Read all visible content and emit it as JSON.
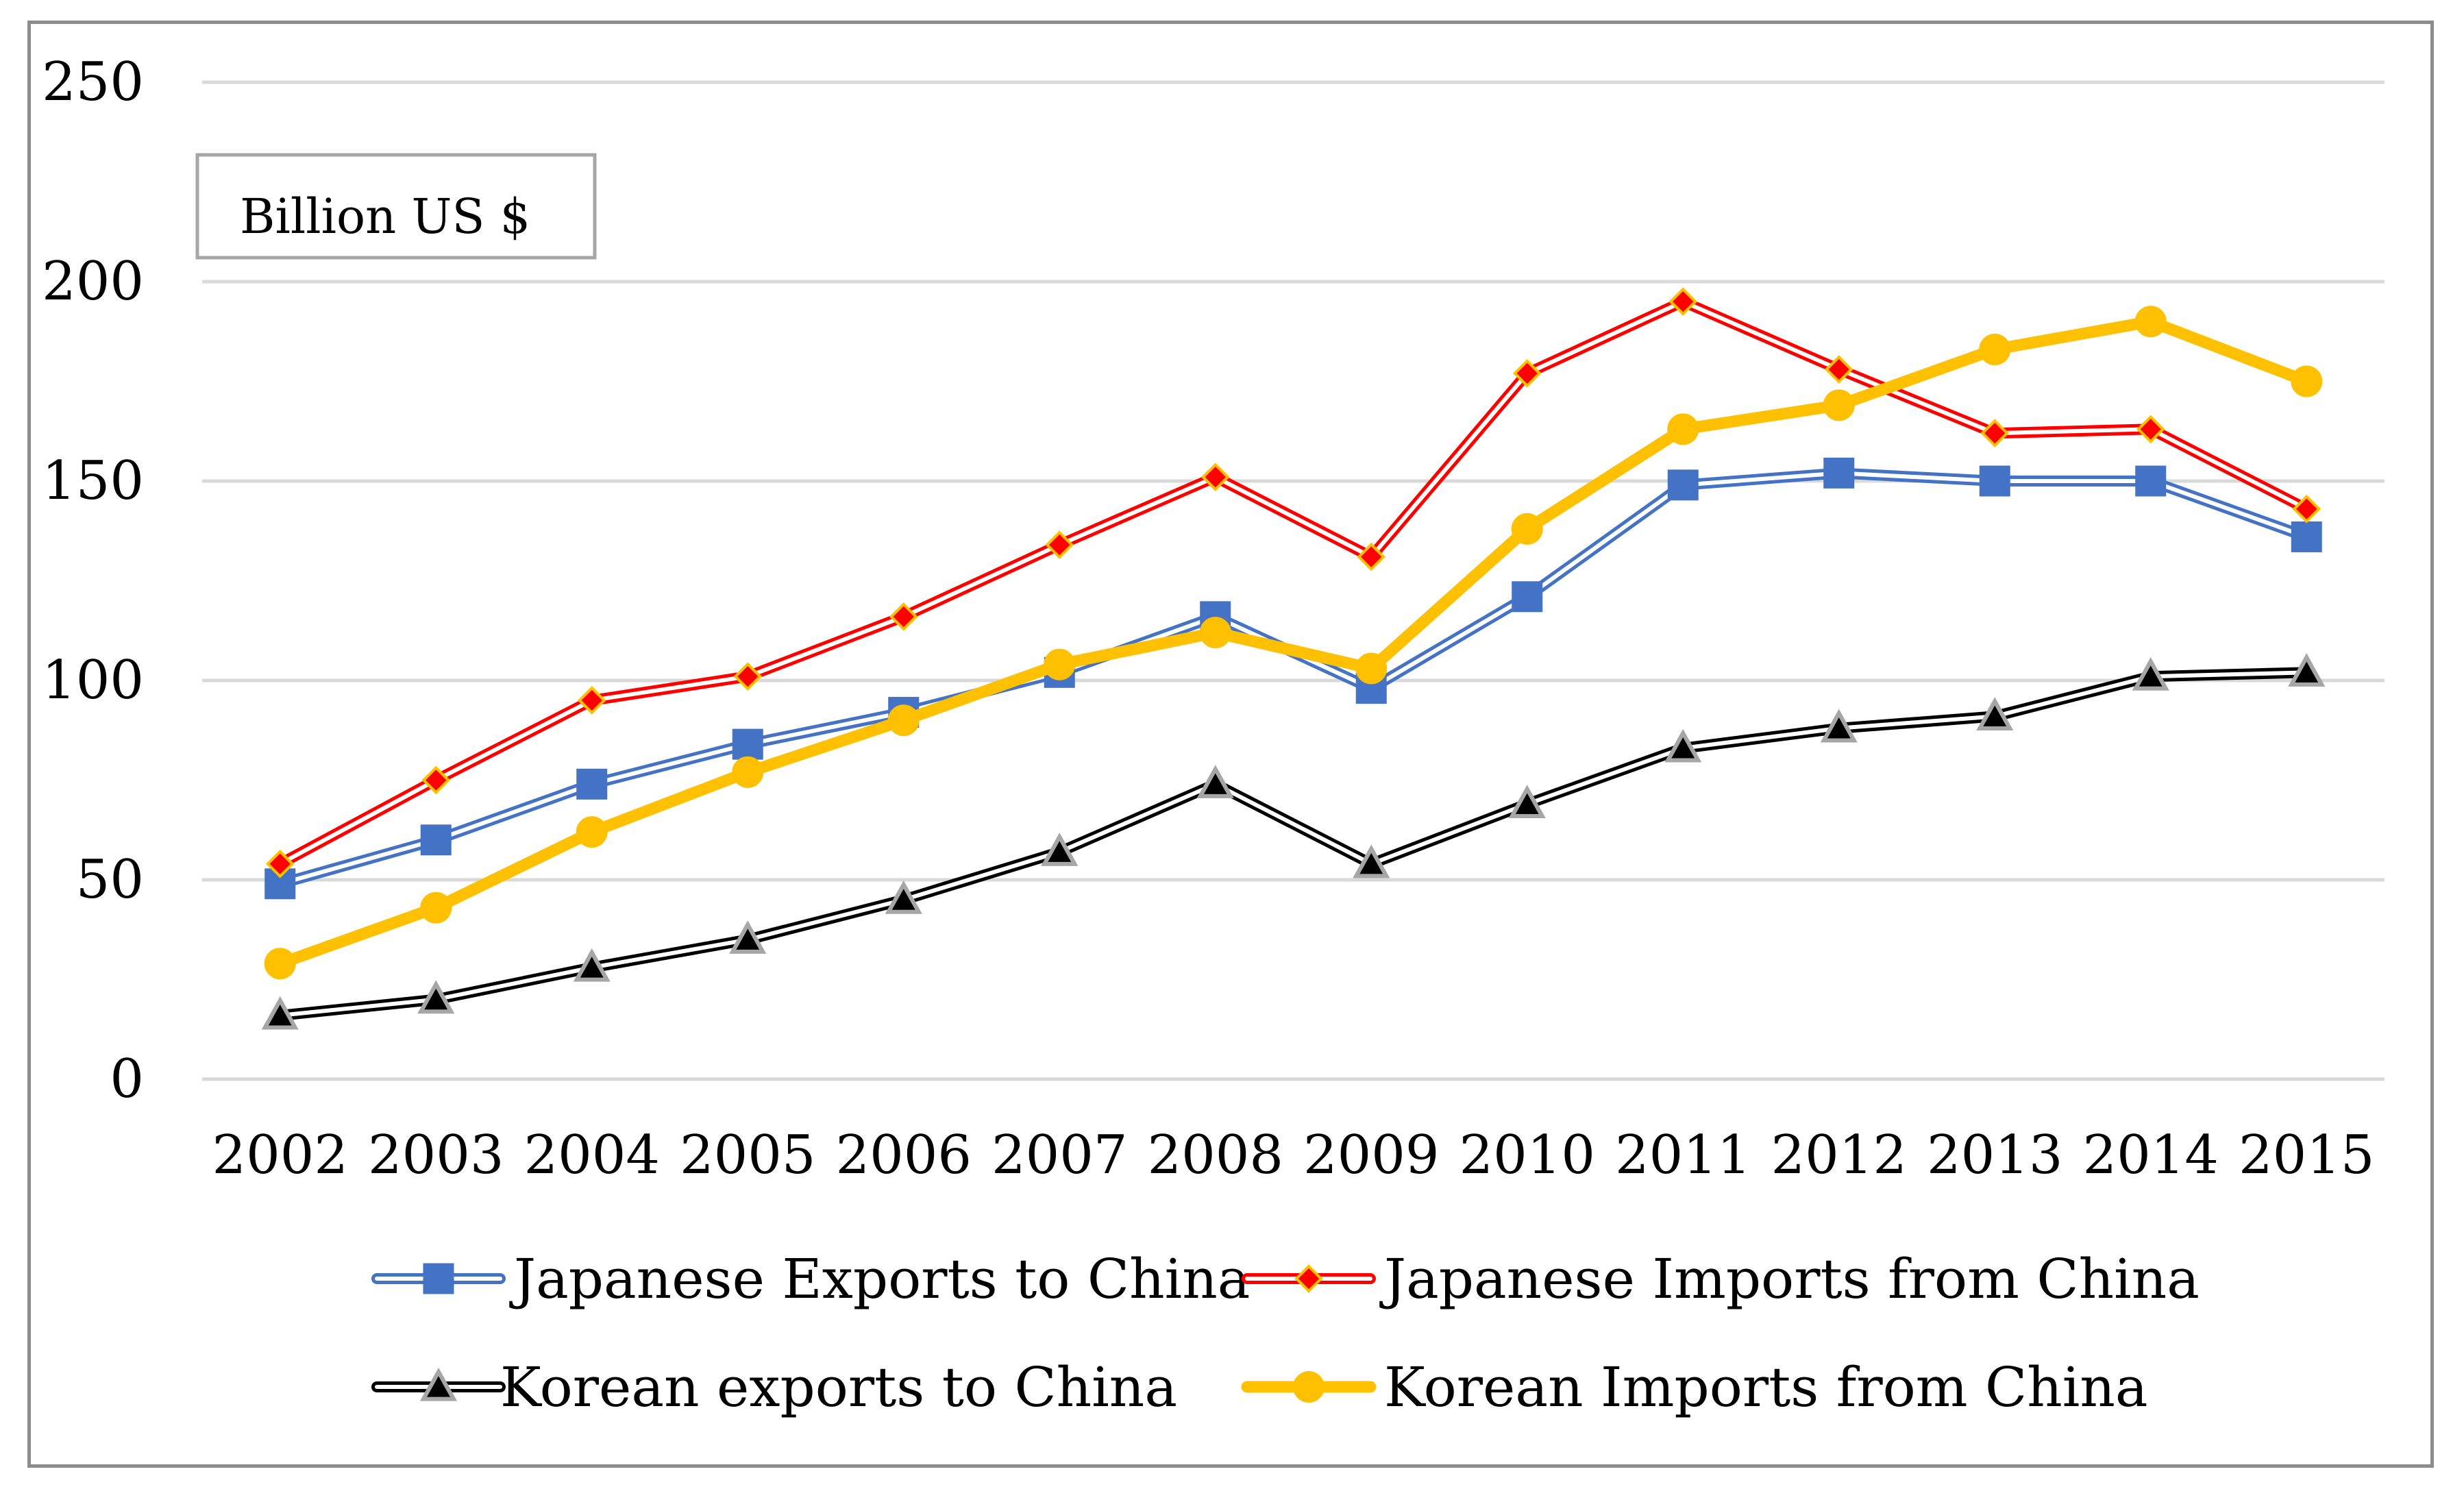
{
  "chart_data": {
    "type": "line",
    "title": "",
    "unit_label": "Billion US $",
    "xlabel": "",
    "ylabel": "",
    "ylim": [
      0,
      250
    ],
    "yticks": [
      0,
      50,
      100,
      150,
      200,
      250
    ],
    "grid": true,
    "legend_position": "bottom",
    "categories": [
      "2002",
      "2003",
      "2004",
      "2005",
      "2006",
      "2007",
      "2008",
      "2009",
      "2010",
      "2011",
      "2012",
      "2013",
      "2014",
      "2015"
    ],
    "series": [
      {
        "name": "Japanese Exports to China",
        "color": "#4472c4",
        "marker": "square",
        "style": "double",
        "values": [
          49,
          60,
          74,
          84,
          92,
          102,
          116,
          98,
          121,
          149,
          152,
          150,
          150,
          136
        ]
      },
      {
        "name": "Japanese Imports from China",
        "color": "#ff0000",
        "marker": "diamond",
        "style": "double",
        "values": [
          54,
          75,
          95,
          101,
          116,
          134,
          151,
          131,
          177,
          195,
          178,
          162,
          163,
          143
        ]
      },
      {
        "name": "Korean exports to China",
        "color": "#000000",
        "marker": "triangle",
        "style": "double",
        "values": [
          16,
          20,
          28,
          35,
          45,
          57,
          74,
          54,
          69,
          83,
          88,
          91,
          101,
          102
        ]
      },
      {
        "name": "Korean Imports from China",
        "color": "#ffc000",
        "marker": "circle",
        "style": "thick",
        "values": [
          29,
          43,
          62,
          77,
          90,
          104,
          112,
          103,
          138,
          163,
          169,
          183,
          190,
          175
        ]
      }
    ]
  }
}
